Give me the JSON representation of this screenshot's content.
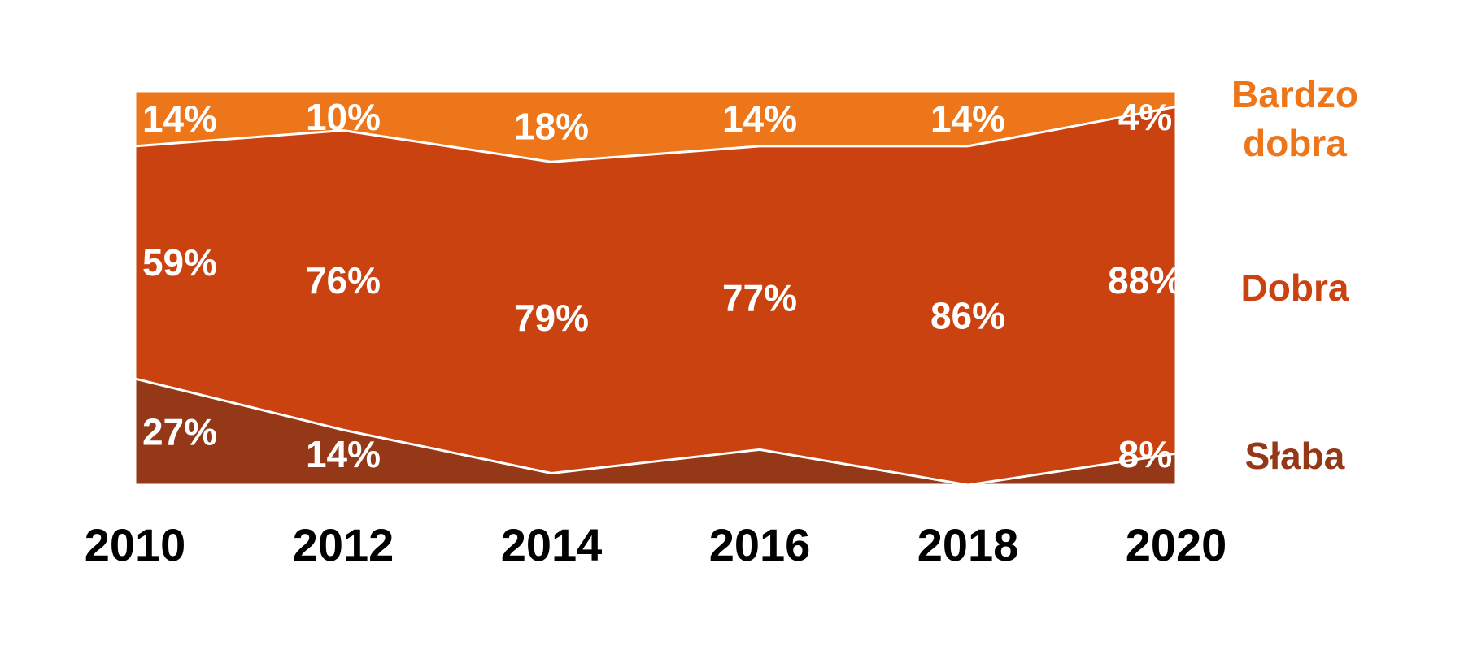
{
  "chart_data": {
    "type": "area",
    "stacked": true,
    "percent_stacked": true,
    "categories": [
      "2010",
      "2012",
      "2014",
      "2016",
      "2018",
      "2020"
    ],
    "series": [
      {
        "name": "Słaba",
        "values": [
          27,
          14,
          3,
          9,
          0,
          8
        ],
        "labels": [
          "27%",
          "14%",
          "",
          "",
          "",
          "8%"
        ],
        "color": "#943817"
      },
      {
        "name": "Dobra",
        "values": [
          59,
          76,
          79,
          77,
          86,
          88
        ],
        "labels": [
          "59%",
          "76%",
          "79%",
          "77%",
          "86%",
          "88%"
        ],
        "color": "#CB4211"
      },
      {
        "name": "Bardzo dobra",
        "values": [
          14,
          10,
          18,
          14,
          14,
          4
        ],
        "labels": [
          "14%",
          "10%",
          "18%",
          "14%",
          "14%",
          "4%"
        ],
        "color": "#EE761A"
      }
    ],
    "legend": {
      "position": "right",
      "entries": [
        {
          "lines": [
            "Bardzo",
            "dobra"
          ],
          "color": "#EE761A"
        },
        {
          "lines": [
            "Dobra"
          ],
          "color": "#CB4211"
        },
        {
          "lines": [
            "Słaba"
          ],
          "color": "#943817"
        }
      ]
    },
    "ylim": [
      0,
      100
    ],
    "grid": false,
    "title": "",
    "xlabel": "",
    "ylabel": ""
  }
}
